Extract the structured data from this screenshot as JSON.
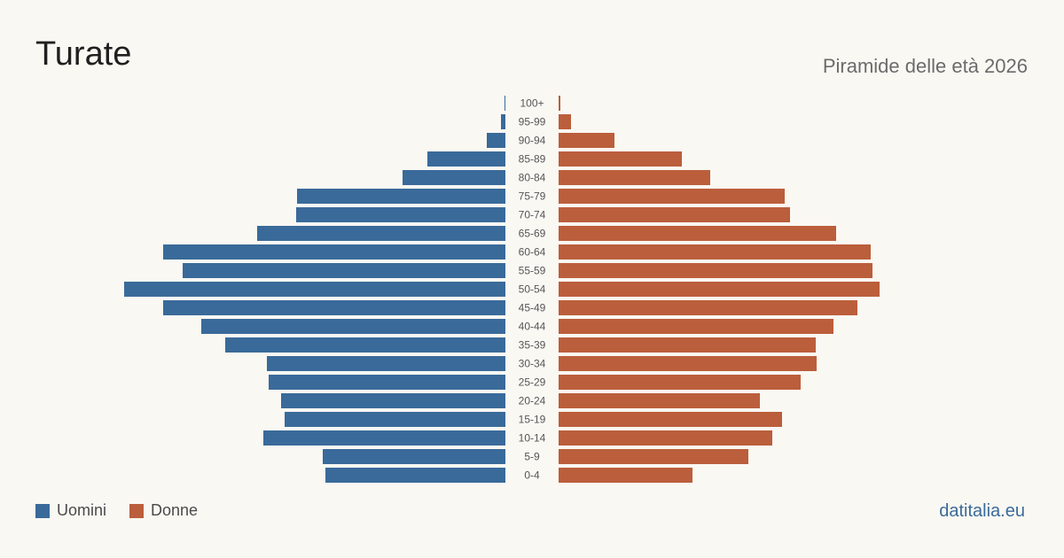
{
  "header": {
    "title": "Turate",
    "subtitle": "Piramide delle età 2026"
  },
  "legend": {
    "men_label": "Uomini",
    "women_label": "Donne"
  },
  "footer": {
    "source": "datitalia.eu"
  },
  "colors": {
    "men": "#3a6a9a",
    "women": "#bb5e3c",
    "background": "#faf8f3"
  },
  "chart_data": {
    "type": "bar",
    "orientation": "horizontal",
    "subtype": "population-pyramid",
    "categories": [
      "0-4",
      "5-9",
      "10-14",
      "15-19",
      "20-24",
      "25-29",
      "30-34",
      "35-39",
      "40-44",
      "45-49",
      "50-54",
      "55-59",
      "60-64",
      "65-69",
      "70-74",
      "75-79",
      "80-84",
      "85-89",
      "90-94",
      "95-99",
      "100+"
    ],
    "series": [
      {
        "name": "Uomini",
        "color": "#3a6a9a",
        "values": [
          203,
          206,
          273,
          249,
          253,
          267,
          269,
          316,
          343,
          386,
          430,
          364,
          386,
          280,
          236,
          235,
          116,
          88,
          21,
          5,
          1
        ]
      },
      {
        "name": "Donne",
        "color": "#bb5e3c",
        "values": [
          151,
          214,
          241,
          252,
          227,
          273,
          291,
          290,
          310,
          337,
          362,
          354,
          352,
          313,
          261,
          255,
          171,
          139,
          63,
          14,
          2
        ]
      }
    ],
    "legend_position": "bottom-left",
    "grid": false
  }
}
